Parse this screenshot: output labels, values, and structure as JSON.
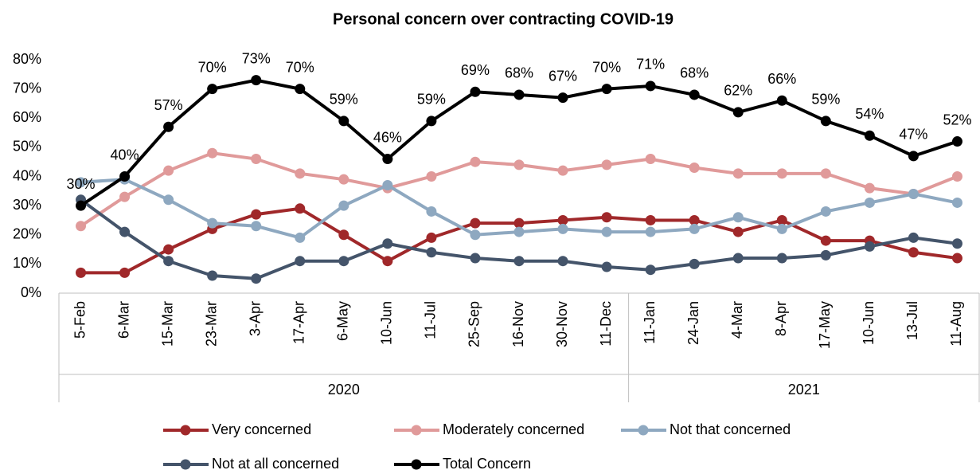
{
  "chart_data": {
    "type": "line",
    "title": "Personal concern over contracting COVID-19",
    "categories": [
      "5-Feb",
      "6-Mar",
      "15-Mar",
      "23-Mar",
      "3-Apr",
      "17-Apr",
      "6-May",
      "10-Jun",
      "11-Jul",
      "25-Sep",
      "16-Nov",
      "30-Nov",
      "11-Dec",
      "11-Jan",
      "24-Jan",
      "4-Mar",
      "8-Apr",
      "17-May",
      "10-Jun",
      "13-Jul",
      "11-Aug"
    ],
    "groups": [
      {
        "label": "2020",
        "span": 13
      },
      {
        "label": "2021",
        "span": 8
      }
    ],
    "ylim": [
      0,
      80
    ],
    "yticks": [
      {
        "value": 0,
        "label": "0%"
      },
      {
        "value": 10,
        "label": "10%"
      },
      {
        "value": 20,
        "label": "20%"
      },
      {
        "value": 30,
        "label": "30%"
      },
      {
        "value": 40,
        "label": "40%"
      },
      {
        "value": 50,
        "label": "50%"
      },
      {
        "value": 60,
        "label": "60%"
      },
      {
        "value": 70,
        "label": "70%"
      },
      {
        "value": 80,
        "label": "80%"
      }
    ],
    "series": [
      {
        "name": "Very concerned",
        "color": "#a0282a",
        "values": [
          7,
          7,
          15,
          22,
          27,
          29,
          20,
          11,
          19,
          24,
          24,
          25,
          26,
          25,
          25,
          21,
          25,
          18,
          18,
          14,
          12
        ]
      },
      {
        "name": "Moderately concerned",
        "color": "#e09a9a",
        "values": [
          23,
          33,
          42,
          48,
          46,
          41,
          39,
          36,
          40,
          45,
          44,
          42,
          44,
          46,
          43,
          41,
          41,
          41,
          36,
          34,
          40
        ]
      },
      {
        "name": "Not that concerned",
        "color": "#8ea8c0",
        "values": [
          38,
          39,
          32,
          24,
          23,
          19,
          30,
          37,
          28,
          20,
          21,
          22,
          21,
          21,
          22,
          26,
          22,
          28,
          31,
          34,
          31
        ]
      },
      {
        "name": "Not at all concerned",
        "color": "#44546a",
        "values": [
          32,
          21,
          11,
          6,
          5,
          11,
          11,
          17,
          14,
          12,
          11,
          11,
          9,
          8,
          10,
          12,
          12,
          13,
          16,
          19,
          17
        ]
      },
      {
        "name": "Total Concern",
        "color": "#000000",
        "values": [
          30,
          40,
          57,
          70,
          73,
          70,
          59,
          46,
          59,
          69,
          68,
          67,
          70,
          71,
          68,
          62,
          66,
          59,
          54,
          47,
          52
        ],
        "value_labels": [
          "30%",
          "40%",
          "57%",
          "70%",
          "73%",
          "70%",
          "59%",
          "46%",
          "59%",
          "69%",
          "68%",
          "67%",
          "70%",
          "71%",
          "68%",
          "62%",
          "66%",
          "59%",
          "54%",
          "47%",
          "52%"
        ]
      }
    ],
    "legend": "bottom"
  }
}
